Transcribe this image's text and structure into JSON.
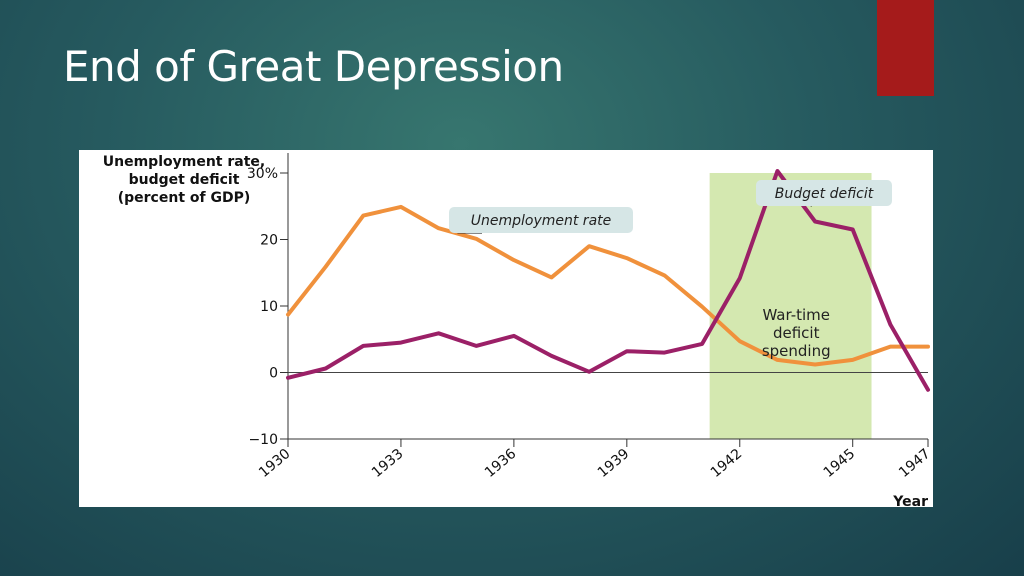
{
  "slide": {
    "title": "End of Great Depression",
    "accent_color": "#a51b1b"
  },
  "chart_data": {
    "type": "line",
    "ylabel": [
      "Unemployment rate,",
      "budget deficit",
      "(percent of GDP)"
    ],
    "xlabel": "Year",
    "ylim": [
      -10,
      30
    ],
    "xlim": [
      1930,
      1947
    ],
    "y_ticks": [
      {
        "value": 30,
        "label": "30%"
      },
      {
        "value": 20,
        "label": "20"
      },
      {
        "value": 10,
        "label": "10"
      },
      {
        "value": 0,
        "label": "0"
      },
      {
        "value": -10,
        "label": "−10"
      }
    ],
    "x_ticks": [
      1930,
      1933,
      1936,
      1939,
      1942,
      1945,
      1947
    ],
    "series": [
      {
        "name": "Unemployment rate",
        "color": "#f0913c",
        "points": [
          [
            1930,
            8.7
          ],
          [
            1931,
            15.9
          ],
          [
            1932,
            23.6
          ],
          [
            1933,
            24.9
          ],
          [
            1934,
            21.7
          ],
          [
            1935,
            20.1
          ],
          [
            1936,
            16.9
          ],
          [
            1937,
            14.3
          ],
          [
            1938,
            19.0
          ],
          [
            1939,
            17.2
          ],
          [
            1940,
            14.6
          ],
          [
            1941,
            9.9
          ],
          [
            1942,
            4.7
          ],
          [
            1943,
            1.9
          ],
          [
            1944,
            1.2
          ],
          [
            1945,
            1.9
          ],
          [
            1946,
            3.9
          ],
          [
            1947,
            3.9
          ]
        ]
      },
      {
        "name": "Budget deficit",
        "color": "#9b2067",
        "points": [
          [
            1930,
            -0.8
          ],
          [
            1931,
            0.6
          ],
          [
            1932,
            4.0
          ],
          [
            1933,
            4.5
          ],
          [
            1934,
            5.9
          ],
          [
            1935,
            4.0
          ],
          [
            1936,
            5.5
          ],
          [
            1937,
            2.5
          ],
          [
            1938,
            0.1
          ],
          [
            1939,
            3.2
          ],
          [
            1940,
            3.0
          ],
          [
            1941,
            4.3
          ],
          [
            1942,
            14.2
          ],
          [
            1943,
            30.3
          ],
          [
            1944,
            22.7
          ],
          [
            1945,
            21.5
          ],
          [
            1946,
            7.2
          ],
          [
            1947,
            -2.6
          ]
        ]
      }
    ],
    "callouts": {
      "unemployment": "Unemployment rate",
      "deficit": "Budget deficit"
    },
    "shaded_region": {
      "x_range": [
        1941.2,
        1945.5
      ],
      "y_range": [
        -10,
        30
      ],
      "color": "#d4e8b0",
      "label": [
        "War-time",
        "deficit",
        "spending"
      ]
    },
    "grid": false,
    "zero_line": true
  }
}
